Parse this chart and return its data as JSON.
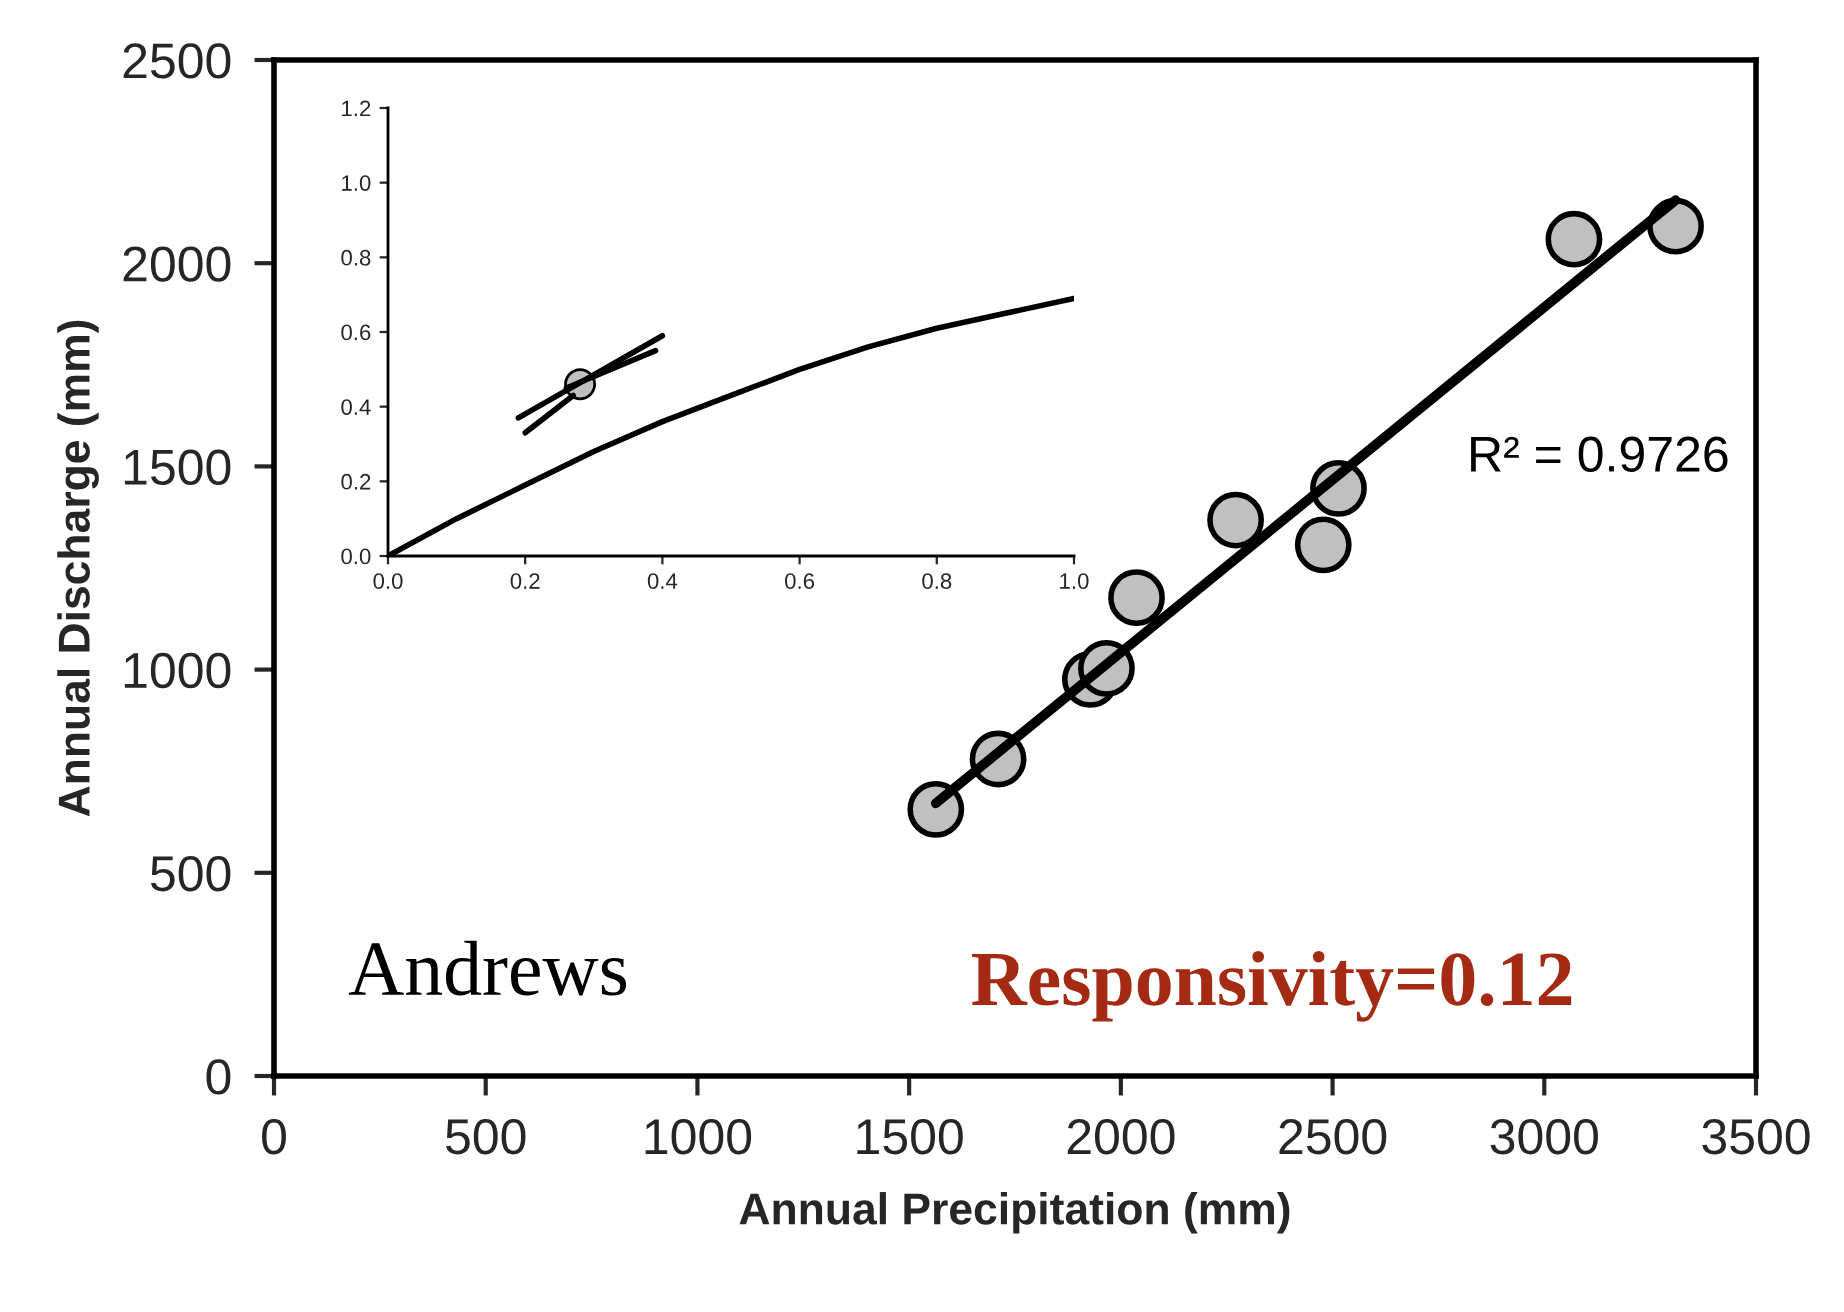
{
  "chart_data": [
    {
      "type": "scatter",
      "xlabel": "Annual Precipitation (mm)",
      "ylabel": "Annual Discharge (mm)",
      "xlim": [
        0,
        3500
      ],
      "ylim": [
        0,
        2500
      ],
      "xticks": [
        0,
        500,
        1000,
        1500,
        2000,
        2500,
        3000,
        3500
      ],
      "yticks": [
        0,
        500,
        1000,
        1500,
        2000,
        2500
      ],
      "series": [
        {
          "marker": "circle",
          "color": "#c0c0c0",
          "x": [
            1563,
            1710,
            1928,
            1966,
            2037,
            2271,
            2478,
            2514,
            3070,
            3310
          ],
          "values": [
            656,
            780,
            976,
            1003,
            1177,
            1368,
            1307,
            1446,
            2059,
            2091
          ]
        },
        {
          "type": "line",
          "color": "#000000",
          "x": [
            1563,
            3310
          ],
          "values": [
            671,
            2155
          ]
        }
      ],
      "annotations": [
        "R² = 0.9726",
        "Andrews",
        "Responsivity=0.12"
      ]
    },
    {
      "type": "line",
      "xlim": [
        0,
        1
      ],
      "ylim": [
        0,
        1.2
      ],
      "xticks": [
        {
          "value": 0,
          "label": "0.0"
        },
        {
          "value": 0.2,
          "label": "0.2"
        },
        {
          "value": 0.4,
          "label": "0.4"
        },
        {
          "value": 0.6,
          "label": "0.6"
        },
        {
          "value": 0.8,
          "label": "0.8"
        },
        {
          "value": 1,
          "label": "1.0"
        }
      ],
      "yticks": [
        {
          "value": 0,
          "label": "0.0"
        },
        {
          "value": 0.2,
          "label": "0.2"
        },
        {
          "value": 0.4,
          "label": "0.4"
        },
        {
          "value": 0.6,
          "label": "0.6"
        },
        {
          "value": 0.8,
          "label": "0.8"
        },
        {
          "value": 1,
          "label": "1.0"
        },
        {
          "value": 1.2,
          "label": "1.2"
        }
      ],
      "series": [
        {
          "color": "#000000",
          "x": [
            0,
            0.1,
            0.2,
            0.3,
            0.4,
            0.5,
            0.6,
            0.7,
            0.8,
            0.9,
            1.0
          ],
          "values": [
            0,
            0.1,
            0.19,
            0.28,
            0.36,
            0.43,
            0.5,
            0.56,
            0.61,
            0.65,
            0.69
          ]
        },
        {
          "color": "#000000",
          "x": [
            0.19,
            0.4
          ],
          "values": [
            0.37,
            0.59
          ]
        },
        {
          "color": "#000000",
          "x": [
            0.2,
            0.27
          ],
          "values": [
            0.33,
            0.43
          ]
        },
        {
          "color": "#000000",
          "x": [
            0.26,
            0.39
          ],
          "values": [
            0.45,
            0.55
          ]
        },
        {
          "type": "scatter",
          "marker": "circle",
          "color": "#c0c0c0",
          "x": [
            0.28
          ],
          "values": [
            0.46
          ]
        }
      ]
    }
  ]
}
